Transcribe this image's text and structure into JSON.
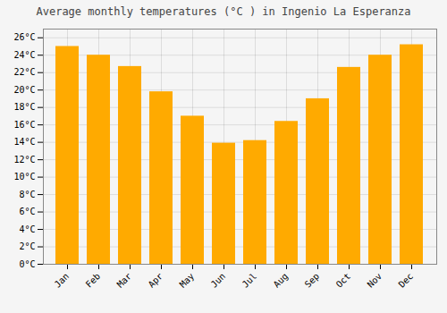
{
  "chart_data": {
    "type": "bar",
    "title": "Average monthly temperatures (°C ) in Ingenio La Esperanza",
    "categories": [
      "Jan",
      "Feb",
      "Mar",
      "Apr",
      "May",
      "Jun",
      "Jul",
      "Aug",
      "Sep",
      "Oct",
      "Nov",
      "Dec"
    ],
    "values": [
      25.0,
      24.0,
      22.7,
      19.8,
      17.0,
      13.9,
      14.2,
      16.4,
      19.0,
      22.6,
      24.0,
      25.2
    ],
    "color": "#FFAA00",
    "ylim": [
      0,
      27
    ],
    "yticks": [
      {
        "value": 0,
        "label": "0°C"
      },
      {
        "value": 2,
        "label": "2°C"
      },
      {
        "value": 4,
        "label": "4°C"
      },
      {
        "value": 6,
        "label": "6°C"
      },
      {
        "value": 8,
        "label": "8°C"
      },
      {
        "value": 10,
        "label": "10°C"
      },
      {
        "value": 12,
        "label": "12°C"
      },
      {
        "value": 14,
        "label": "14°C"
      },
      {
        "value": 16,
        "label": "16°C"
      },
      {
        "value": 18,
        "label": "18°C"
      },
      {
        "value": 20,
        "label": "20°C"
      },
      {
        "value": 22,
        "label": "22°C"
      },
      {
        "value": 24,
        "label": "24°C"
      },
      {
        "value": 26,
        "label": "26°C"
      }
    ],
    "grid": true
  }
}
